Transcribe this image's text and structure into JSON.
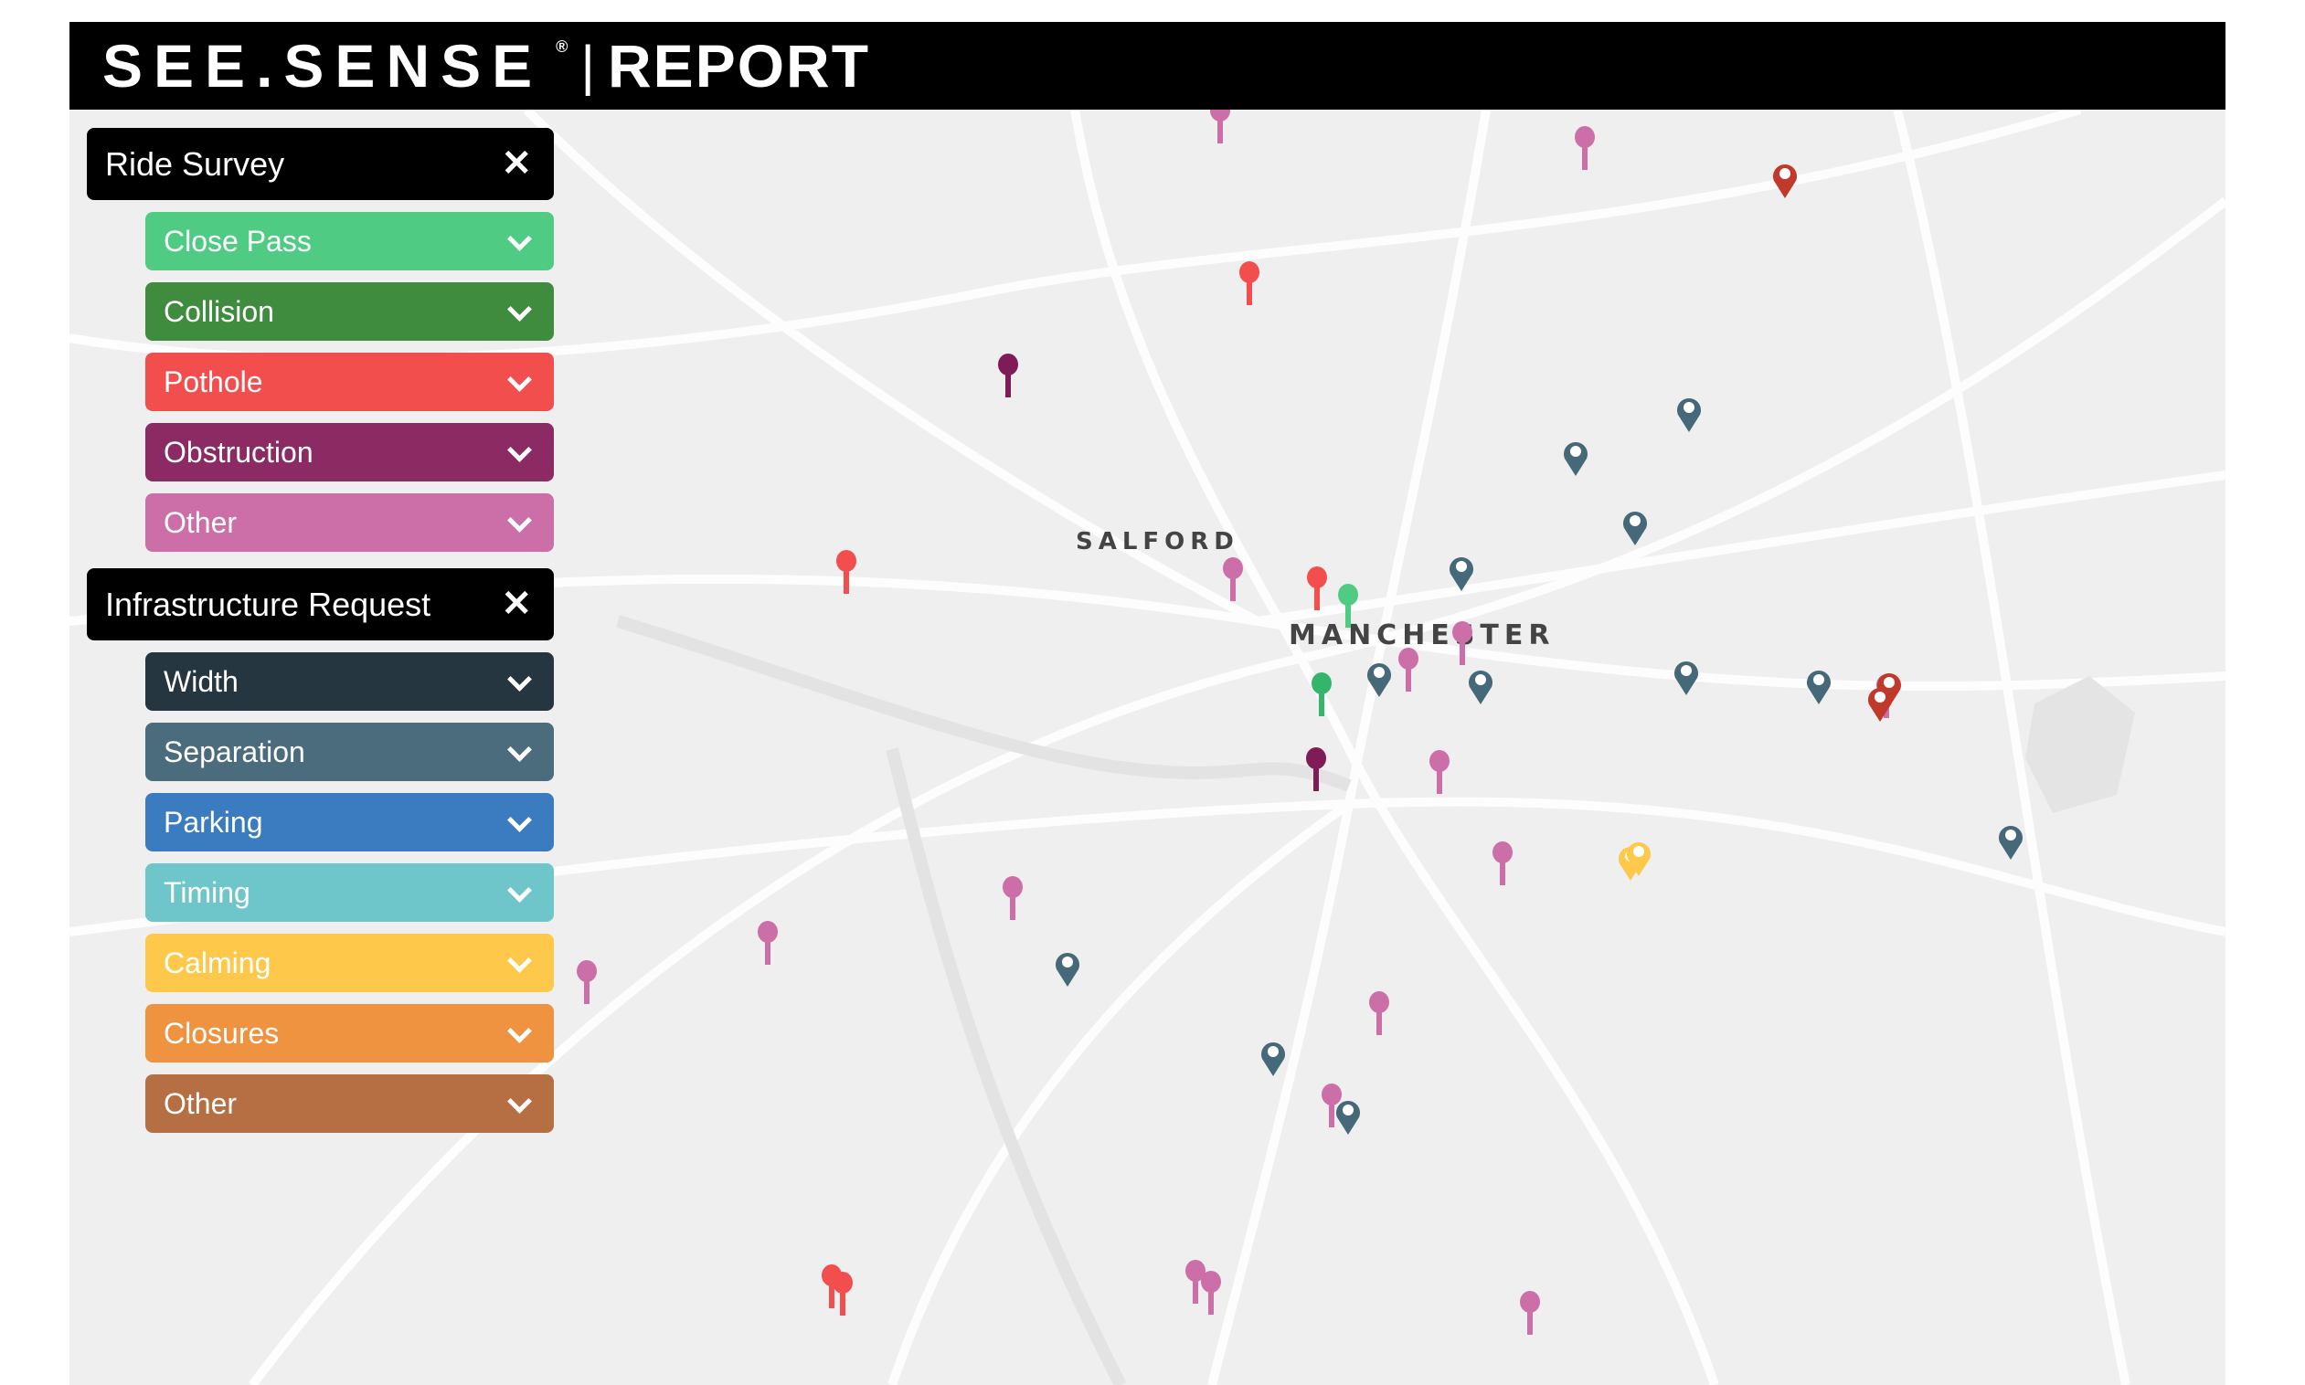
{
  "header": {
    "brand": "SEE.SENSE",
    "registered": "®",
    "separator": "|",
    "product": "REPORT"
  },
  "map": {
    "labels": [
      "SALFORD",
      "MANCHESTER"
    ]
  },
  "groups": [
    {
      "title": "Ride Survey",
      "close_icon": "close-icon",
      "items": [
        {
          "label": "Close Pass",
          "color": "#4fcb84"
        },
        {
          "label": "Collision",
          "color": "#3f8c3e"
        },
        {
          "label": "Pothole",
          "color": "#f24e4e"
        },
        {
          "label": "Obstruction",
          "color": "#8b2a63"
        },
        {
          "label": "Other",
          "color": "#cc6fa8"
        }
      ]
    },
    {
      "title": "Infrastructure Request",
      "close_icon": "close-icon",
      "items": [
        {
          "label": "Width",
          "color": "#263640"
        },
        {
          "label": "Separation",
          "color": "#4a6c7d"
        },
        {
          "label": "Parking",
          "color": "#3b7bbf"
        },
        {
          "label": "Timing",
          "color": "#6ec6cb"
        },
        {
          "label": "Calming",
          "color": "#fec84a"
        },
        {
          "label": "Closures",
          "color": "#ef9340"
        },
        {
          "label": "Other",
          "color": "#b66e43"
        }
      ]
    }
  ],
  "pin_colors": {
    "close_pass": "#4fcb84",
    "collision": "#34b56b",
    "pothole": "#f24e4e",
    "obstruction": "#7f1b57",
    "other": "#cc6fa8",
    "separation": "#46697a",
    "infra_red": "#c0392b",
    "calming": "#fec84a"
  }
}
